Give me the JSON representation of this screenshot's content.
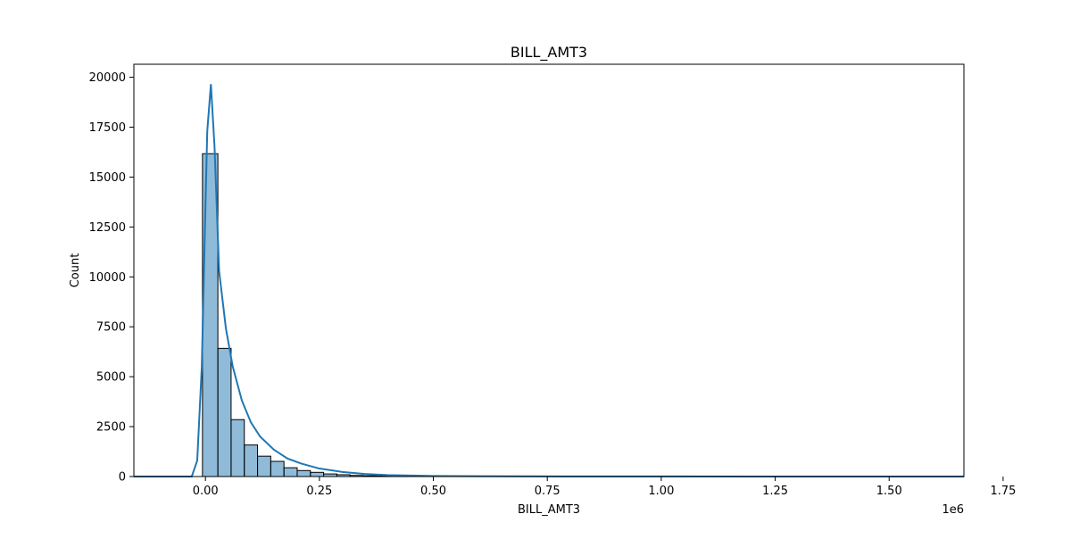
{
  "chart_data": {
    "type": "bar",
    "title": "BILL_AMT3",
    "xlabel": "BILL_AMT3",
    "ylabel": "Count",
    "x_offset_label": "1e6",
    "x_scale": 1000000,
    "xlim": [
      -0.157,
      1.664
    ],
    "ylim": [
      0,
      20650
    ],
    "xticks": [
      0.0,
      0.25,
      0.5,
      0.75,
      1.0,
      1.25,
      1.5,
      1.75
    ],
    "xtick_labels": [
      "0.00",
      "0.25",
      "0.50",
      "0.75",
      "1.00",
      "1.25",
      "1.50",
      "1.75"
    ],
    "yticks": [
      0,
      2500,
      5000,
      7500,
      10000,
      12500,
      15000,
      17500,
      20000
    ],
    "ytick_labels": [
      "0",
      "2500",
      "5000",
      "7500",
      "10000",
      "12500",
      "15000",
      "17500",
      "20000"
    ],
    "grid": false,
    "bar_color": "#1f77b4",
    "bar_edge_color": "#000000",
    "kde_color": "#1f77b4",
    "bins": {
      "edges": [
        -0.0065,
        0.0273,
        0.0563,
        0.0853,
        0.1143,
        0.1433,
        0.1723,
        0.2013,
        0.2303,
        0.2593,
        0.2883,
        0.3173,
        0.3463,
        0.3753,
        0.4043,
        0.4333,
        0.4623,
        0.4913
      ],
      "counts": [
        16170,
        6420,
        2850,
        1580,
        1020,
        760,
        440,
        300,
        210,
        130,
        90,
        55,
        40,
        28,
        20,
        14,
        10
      ]
    },
    "kde": {
      "x": [
        -0.157,
        -0.03,
        -0.018,
        -0.008,
        0.0,
        0.004,
        0.012,
        0.02,
        0.03,
        0.045,
        0.06,
        0.08,
        0.1,
        0.12,
        0.15,
        0.18,
        0.21,
        0.25,
        0.3,
        0.35,
        0.4,
        0.5,
        0.6,
        0.8,
        1.0,
        1.2,
        1.4,
        1.664
      ],
      "y": [
        0,
        0,
        800,
        5500,
        13500,
        17300,
        19650,
        16500,
        10300,
        7400,
        5500,
        3800,
        2700,
        2000,
        1350,
        900,
        650,
        400,
        230,
        130,
        70,
        30,
        15,
        5,
        3,
        2,
        1,
        0
      ]
    }
  }
}
